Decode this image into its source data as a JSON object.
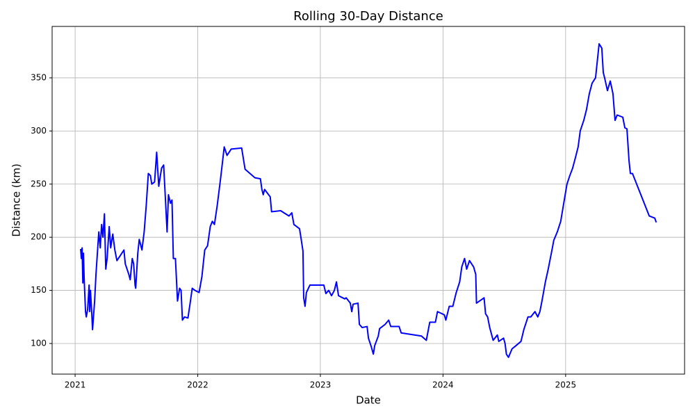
{
  "chart_data": {
    "type": "line",
    "title": "Rolling 30-Day Distance",
    "x_label": "Date",
    "y_label": "Distance (km)",
    "grid": true,
    "xlim": [
      2020.8125,
      2025.97
    ],
    "xticks": [
      2021,
      2022,
      2023,
      2024,
      2025
    ],
    "ylim": [
      71.2,
      398.4
    ],
    "yticks": [
      100,
      150,
      200,
      250,
      300,
      350
    ],
    "x": [
      2021.045,
      2021.051,
      2021.057,
      2021.063,
      2021.068,
      2021.074,
      2021.085,
      2021.091,
      2021.102,
      2021.114,
      2021.119,
      2021.125,
      2021.136,
      2021.142,
      2021.159,
      2021.17,
      2021.193,
      2021.205,
      2021.216,
      2021.227,
      2021.239,
      2021.25,
      2021.261,
      2021.278,
      2021.29,
      2021.307,
      2021.324,
      2021.341,
      2021.398,
      2021.409,
      2021.438,
      2021.449,
      2021.466,
      2021.477,
      2021.489,
      2021.494,
      2021.511,
      2021.523,
      2021.545,
      2021.563,
      2021.58,
      2021.597,
      2021.614,
      2021.625,
      2021.648,
      2021.665,
      2021.682,
      2021.705,
      2021.722,
      2021.739,
      2021.75,
      2021.761,
      2021.778,
      2021.79,
      2021.801,
      2021.818,
      2021.835,
      2021.852,
      2021.864,
      2021.875,
      2021.892,
      2021.92,
      2021.938,
      2021.955,
      2021.977,
      2022.011,
      2022.034,
      2022.057,
      2022.08,
      2022.102,
      2022.119,
      2022.136,
      2022.159,
      2022.188,
      2022.216,
      2022.239,
      2022.273,
      2022.358,
      2022.386,
      2022.466,
      2022.511,
      2022.523,
      2022.534,
      2022.545,
      2022.591,
      2022.602,
      2022.676,
      2022.744,
      2022.767,
      2022.784,
      2022.83,
      2022.841,
      2022.858,
      2022.864,
      2022.875,
      2022.886,
      2022.915,
      2023.028,
      2023.045,
      2023.068,
      2023.091,
      2023.114,
      2023.131,
      2023.148,
      2023.199,
      2023.21,
      2023.244,
      2023.256,
      2023.267,
      2023.307,
      2023.318,
      2023.341,
      2023.381,
      2023.392,
      2023.415,
      2023.432,
      2023.443,
      2023.472,
      2023.483,
      2023.528,
      2023.557,
      2023.574,
      2023.642,
      2023.659,
      2023.824,
      2023.864,
      2023.892,
      2023.938,
      2023.955,
      2024.011,
      2024.023,
      2024.051,
      2024.08,
      2024.108,
      2024.136,
      2024.153,
      2024.176,
      2024.193,
      2024.216,
      2024.25,
      2024.267,
      2024.273,
      2024.335,
      2024.347,
      2024.364,
      2024.381,
      2024.409,
      2024.443,
      2024.455,
      2024.494,
      2024.506,
      2024.517,
      2024.534,
      2024.563,
      2024.585,
      2024.636,
      2024.659,
      2024.693,
      2024.716,
      2024.75,
      2024.773,
      2024.79,
      2024.807,
      2024.835,
      2024.858,
      2024.892,
      2024.903,
      2024.932,
      2024.96,
      2024.989,
      2025.011,
      2025.034,
      2025.057,
      2025.08,
      2025.102,
      2025.119,
      2025.148,
      2025.17,
      2025.193,
      2025.216,
      2025.244,
      2025.273,
      2025.295,
      2025.307,
      2025.318,
      2025.341,
      2025.364,
      2025.386,
      2025.403,
      2025.42,
      2025.466,
      2025.483,
      2025.5,
      2025.517,
      2025.528,
      2025.545,
      2025.682,
      2025.727,
      2025.739
    ],
    "series": [
      {
        "color": "#0000ff",
        "values": [
          189,
          180,
          190,
          157,
          185,
          160,
          130,
          125,
          132,
          155,
          130,
          150,
          128,
          113,
          140,
          165,
          205,
          190,
          212,
          200,
          222,
          170,
          180,
          210,
          190,
          203,
          188,
          178,
          188,
          175,
          165,
          160,
          180,
          175,
          155,
          152,
          185,
          198,
          188,
          205,
          230,
          260,
          258,
          250,
          252,
          280,
          248,
          265,
          268,
          230,
          205,
          240,
          232,
          235,
          180,
          180,
          140,
          152,
          150,
          122,
          125,
          124,
          138,
          152,
          150,
          148,
          163,
          188,
          192,
          210,
          215,
          212,
          230,
          257,
          285,
          277,
          283,
          284,
          264,
          256,
          255,
          245,
          240,
          245,
          238,
          224,
          225,
          220,
          223,
          212,
          208,
          200,
          187,
          143,
          135,
          148,
          155,
          155,
          147,
          150,
          145,
          150,
          158,
          145,
          142,
          143,
          138,
          130,
          137,
          138,
          118,
          115,
          116,
          105,
          97,
          90,
          98,
          107,
          114,
          118,
          122,
          116,
          116,
          110,
          107,
          103,
          120,
          120,
          130,
          127,
          122,
          135,
          135,
          148,
          158,
          172,
          180,
          170,
          178,
          172,
          165,
          138,
          143,
          128,
          125,
          115,
          103,
          108,
          102,
          105,
          100,
          90,
          87,
          95,
          97,
          102,
          113,
          125,
          125,
          130,
          125,
          130,
          140,
          158,
          170,
          190,
          197,
          205,
          215,
          235,
          250,
          258,
          265,
          275,
          285,
          300,
          310,
          320,
          335,
          345,
          350,
          382,
          378,
          355,
          350,
          338,
          347,
          335,
          310,
          315,
          313,
          303,
          302,
          272,
          260,
          260,
          220,
          218,
          214
        ]
      }
    ]
  }
}
